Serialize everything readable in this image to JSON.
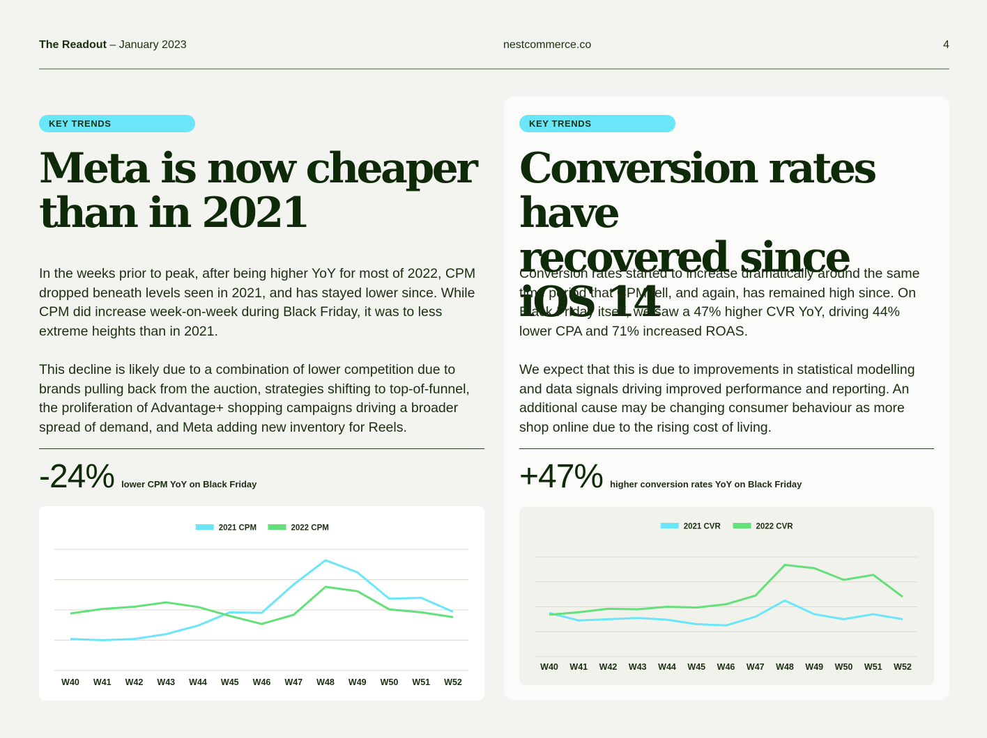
{
  "header": {
    "publication": "The Readout",
    "issue": "– January 2023",
    "site": "nestcommerce.co",
    "page_number": "4"
  },
  "left": {
    "badge": "KEY TRENDS",
    "title_line1": "Meta is now cheaper",
    "title_line2": "than in 2021",
    "para1": "In the weeks prior to peak, after being higher YoY for most of 2022, CPM dropped beneath levels seen in 2021, and has stayed lower since. While CPM did increase week-on-week during Black Friday, it was to less extreme heights than in 2021.",
    "para2": "This decline is likely due to a combination of lower competition due to brands pulling back from the auction, strategies shifting to top-of-funnel, the proliferation of Advantage+ shopping campaigns driving a broader spread of demand, and Meta adding new inventory for Reels.",
    "stat_value": "-24%",
    "stat_label": "lower CPM YoY on Black Friday"
  },
  "right": {
    "badge": "KEY TRENDS",
    "title_line1": "Conversion rates have",
    "title_line2": "recovered since iOS 14",
    "para1": "Conversion rates started to increase dramatically around the same time period  that CPM fell, and again, has remained high since. On Black Friday itself, we saw a 47% higher CVR YoY, driving 44% lower CPA and 71% increased ROAS.",
    "para2": "We expect that this is due to improvements in statistical modelling and data signals driving improved performance and reporting. An additional cause may be changing consumer behaviour as more shop online due to the rising cost of living.",
    "stat_value": "+47%",
    "stat_label": "higher conversion rates YoY on Black Friday"
  },
  "colors": {
    "series_2021": "#6ae6f8",
    "series_2022": "#63e07a",
    "text_dark": "#0f2a08",
    "grid": "#d9d9d4",
    "badge": "#6ae6f8"
  },
  "chart_data": [
    {
      "type": "line",
      "title": "",
      "xlabel": "",
      "ylabel": "",
      "x": [
        "W40",
        "W41",
        "W42",
        "W43",
        "W44",
        "W45",
        "W46",
        "W47",
        "W48",
        "W49",
        "W50",
        "W51",
        "W52"
      ],
      "ylim": [
        0,
        5
      ],
      "grid": true,
      "legend": "top-center",
      "series": [
        {
          "name": "2021 CPM",
          "values": [
            1.3,
            1.25,
            1.3,
            1.5,
            1.85,
            2.4,
            2.38,
            3.55,
            4.55,
            4.05,
            2.96,
            3.0,
            2.42
          ]
        },
        {
          "name": "2022 CPM",
          "values": [
            2.35,
            2.54,
            2.63,
            2.81,
            2.62,
            2.25,
            1.92,
            2.3,
            3.45,
            3.27,
            2.52,
            2.4,
            2.2
          ]
        }
      ]
    },
    {
      "type": "line",
      "title": "",
      "xlabel": "",
      "ylabel": "",
      "x": [
        "W40",
        "W41",
        "W42",
        "W43",
        "W44",
        "W45",
        "W46",
        "W47",
        "W48",
        "W49",
        "W50",
        "W51",
        "W52"
      ],
      "ylim": [
        0,
        4
      ],
      "grid": true,
      "legend": "top-center",
      "series": [
        {
          "name": "2021 CVR",
          "values": [
            1.75,
            1.45,
            1.5,
            1.55,
            1.48,
            1.3,
            1.25,
            1.6,
            2.25,
            1.7,
            1.5,
            1.7,
            1.5
          ]
        },
        {
          "name": "2022 CVR",
          "values": [
            1.68,
            1.78,
            1.92,
            1.9,
            2.0,
            1.97,
            2.1,
            2.45,
            3.68,
            3.55,
            3.08,
            3.28,
            2.4
          ]
        }
      ]
    }
  ]
}
